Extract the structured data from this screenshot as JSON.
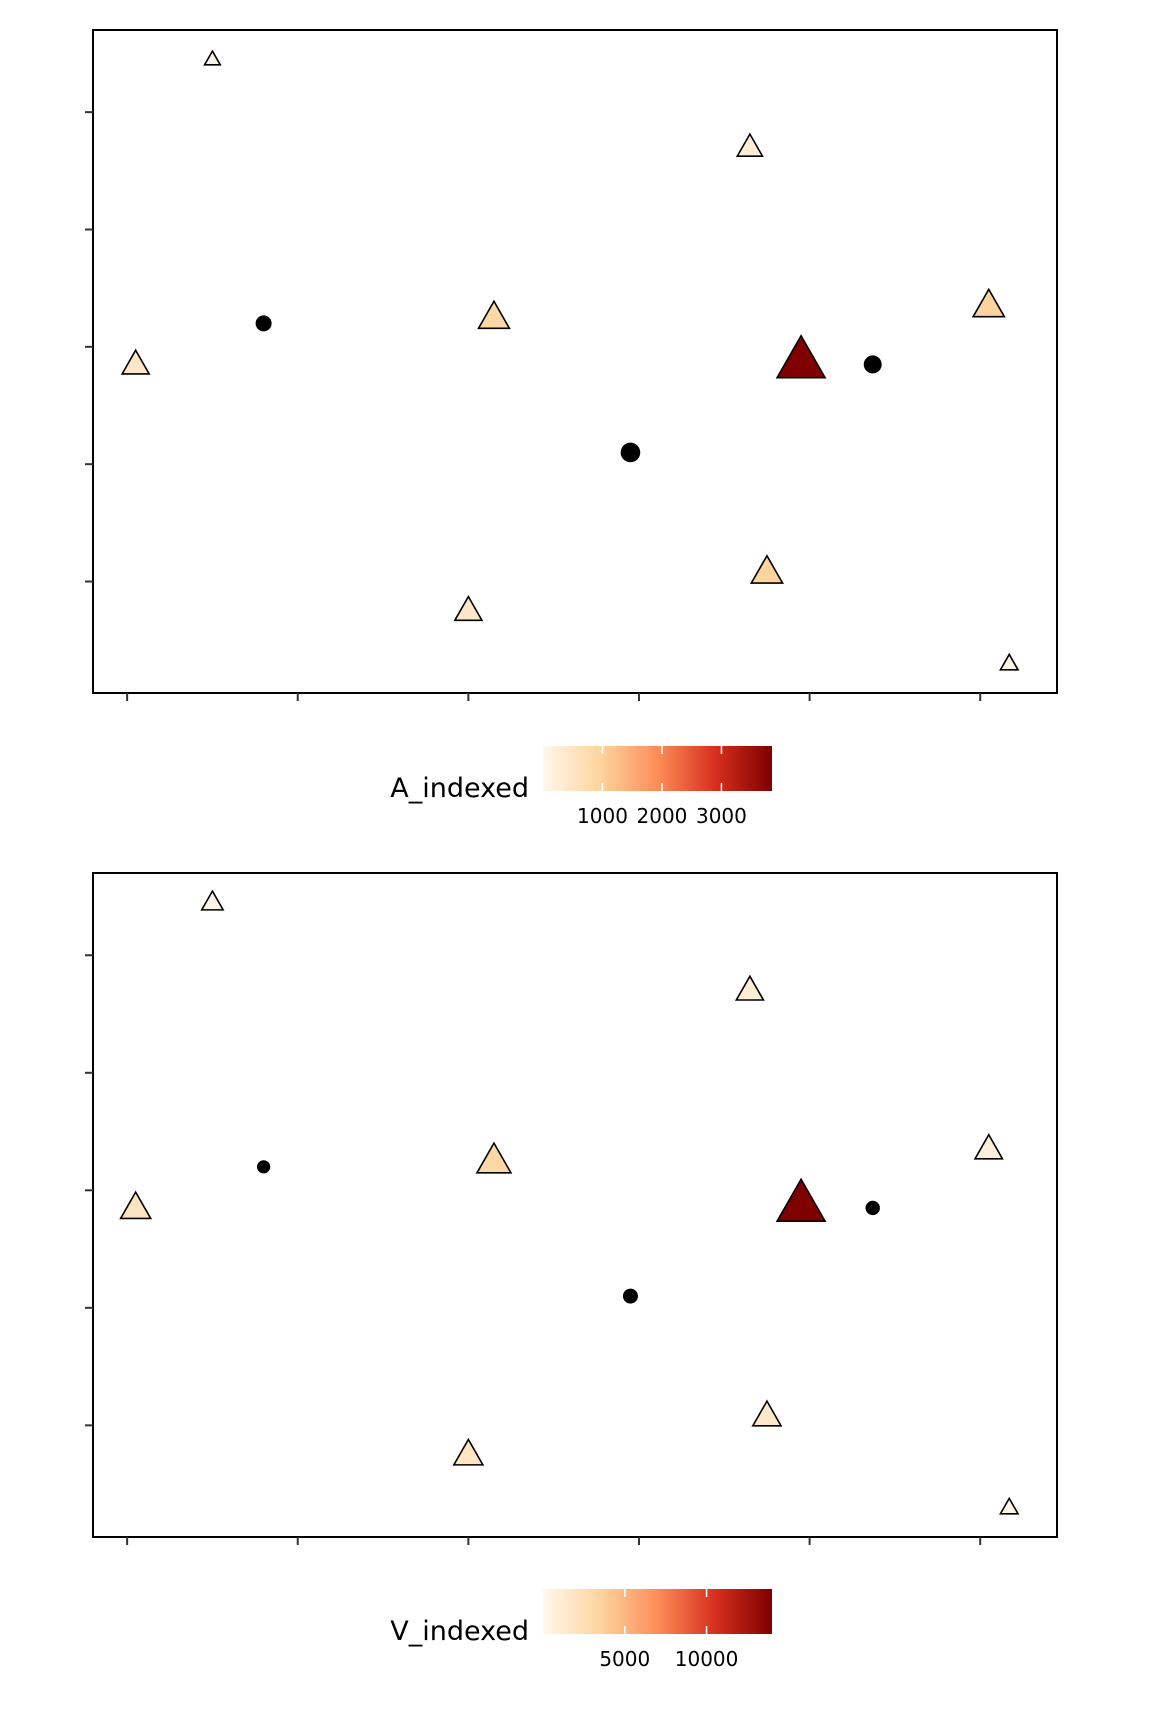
{
  "chart_data": [
    {
      "type": "scatter",
      "title": "",
      "xlabel": "",
      "ylabel": "",
      "xlim": [
        -0.2,
        5.45
      ],
      "ylim": [
        -0.95,
        4.7
      ],
      "xticks": [
        0,
        1,
        2,
        3,
        4,
        5
      ],
      "yticks": [
        0,
        1,
        2,
        3,
        4
      ],
      "grid": false,
      "legend": {
        "title": "A_indexed",
        "position": "bottom",
        "tick_labels": [
          "1000",
          "2000",
          "3000"
        ],
        "tick_values": [
          1000,
          2000,
          3000
        ],
        "range": [
          0,
          3850
        ],
        "colors": [
          "#fff7ec",
          "#fdd49e",
          "#fc8d59",
          "#d7301f",
          "#7f0000"
        ]
      },
      "points": [
        {
          "x": 0.05,
          "y": 1.85,
          "shape": "triangle",
          "value": 450,
          "size": 0.45
        },
        {
          "x": 0.5,
          "y": 4.45,
          "shape": "triangle",
          "value": 80,
          "size": 0.15
        },
        {
          "x": 0.8,
          "y": 2.2,
          "shape": "circle",
          "size": 0.4
        },
        {
          "x": 2.0,
          "y": -0.25,
          "shape": "triangle",
          "value": 450,
          "size": 0.45
        },
        {
          "x": 2.15,
          "y": 2.25,
          "shape": "triangle",
          "value": 850,
          "size": 0.55
        },
        {
          "x": 2.95,
          "y": 1.1,
          "shape": "circle",
          "size": 0.58
        },
        {
          "x": 3.65,
          "y": 3.7,
          "shape": "triangle",
          "value": 300,
          "size": 0.4
        },
        {
          "x": 3.75,
          "y": 0.08,
          "shape": "triangle",
          "value": 950,
          "size": 0.56
        },
        {
          "x": 3.95,
          "y": 1.88,
          "shape": "triangle",
          "value": 3850,
          "size": 1.0
        },
        {
          "x": 4.37,
          "y": 1.85,
          "shape": "circle",
          "size": 0.5
        },
        {
          "x": 5.05,
          "y": 2.35,
          "shape": "triangle",
          "value": 950,
          "size": 0.56
        },
        {
          "x": 5.17,
          "y": -0.7,
          "shape": "triangle",
          "value": 80,
          "size": 0.2
        }
      ]
    },
    {
      "type": "scatter",
      "title": "",
      "xlabel": "",
      "ylabel": "",
      "xlim": [
        -0.2,
        5.45
      ],
      "ylim": [
        -0.95,
        4.7
      ],
      "xticks": [
        0,
        1,
        2,
        3,
        4,
        5
      ],
      "yticks": [
        0,
        1,
        2,
        3,
        4
      ],
      "grid": false,
      "legend": {
        "title": "V_indexed",
        "position": "bottom",
        "tick_labels": [
          "5000",
          "10000"
        ],
        "tick_values": [
          5000,
          10000
        ],
        "range": [
          0,
          14000
        ],
        "colors": [
          "#fff7ec",
          "#fdd49e",
          "#fc8d59",
          "#d7301f",
          "#7f0000"
        ]
      },
      "points": [
        {
          "x": 0.05,
          "y": 1.85,
          "shape": "triangle",
          "value": 2000,
          "size": 0.53
        },
        {
          "x": 0.5,
          "y": 4.45,
          "shape": "triangle",
          "value": 300,
          "size": 0.3
        },
        {
          "x": 0.8,
          "y": 2.2,
          "shape": "circle",
          "size": 0.26
        },
        {
          "x": 2.0,
          "y": -0.25,
          "shape": "triangle",
          "value": 1800,
          "size": 0.5
        },
        {
          "x": 2.15,
          "y": 2.25,
          "shape": "triangle",
          "value": 3200,
          "size": 0.63
        },
        {
          "x": 2.95,
          "y": 1.1,
          "shape": "circle",
          "size": 0.35
        },
        {
          "x": 3.65,
          "y": 3.7,
          "shape": "triangle",
          "value": 900,
          "size": 0.45
        },
        {
          "x": 3.75,
          "y": 0.08,
          "shape": "triangle",
          "value": 1500,
          "size": 0.48
        },
        {
          "x": 3.95,
          "y": 1.88,
          "shape": "triangle",
          "value": 14000,
          "size": 1.0
        },
        {
          "x": 4.37,
          "y": 1.85,
          "shape": "circle",
          "size": 0.32
        },
        {
          "x": 5.05,
          "y": 2.35,
          "shape": "triangle",
          "value": 800,
          "size": 0.46
        },
        {
          "x": 5.17,
          "y": -0.7,
          "shape": "triangle",
          "value": 200,
          "size": 0.2
        }
      ]
    }
  ]
}
